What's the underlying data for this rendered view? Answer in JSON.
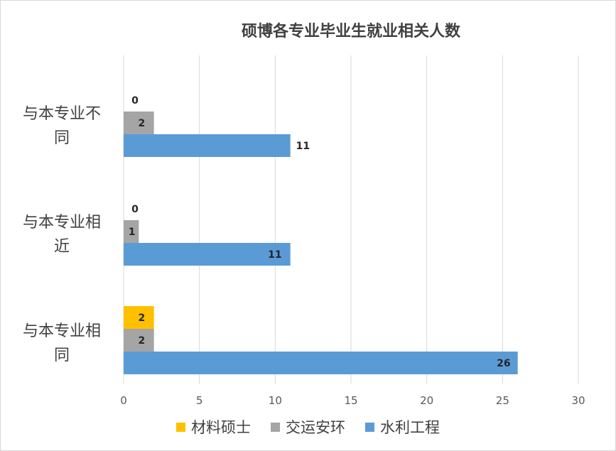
{
  "chart_data": {
    "type": "bar",
    "orientation": "horizontal",
    "title": "硕博各专业毕业生就业相关人数",
    "categories": [
      {
        "lines": [
          "与本专业不",
          "同"
        ]
      },
      {
        "lines": [
          "与本专业相",
          "近"
        ]
      },
      {
        "lines": [
          "与本专业相",
          "同"
        ]
      }
    ],
    "series": [
      {
        "name": "材料硕士",
        "color": "#ffc000",
        "values": [
          0,
          0,
          2
        ]
      },
      {
        "name": "交运安环",
        "color": "#a5a5a5",
        "values": [
          2,
          1,
          2
        ]
      },
      {
        "name": "水利工程",
        "color": "#5b9bd5",
        "values": [
          11,
          11,
          26
        ]
      }
    ],
    "xlim": [
      0,
      30
    ],
    "xticks": [
      0,
      5,
      10,
      15,
      20,
      25,
      30
    ],
    "grid": "vertical",
    "legend_position": "bottom"
  }
}
